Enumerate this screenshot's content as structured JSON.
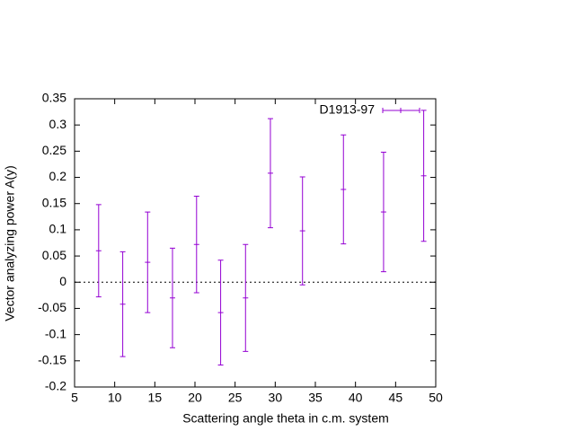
{
  "chart_data": {
    "type": "errorbar",
    "x_label": "Scattering angle theta in c.m. system",
    "y_label": "Vector analyzing power A(y)",
    "x": [
      8.0,
      11.0,
      14.1,
      17.2,
      20.2,
      23.2,
      26.3,
      29.4,
      33.4,
      38.5,
      43.5,
      48.5
    ],
    "series": [
      {
        "name": "D1913-97",
        "color": "#9400d3",
        "values": [
          0.06,
          -0.042,
          0.038,
          -0.03,
          0.072,
          -0.058,
          -0.03,
          0.208,
          0.098,
          0.177,
          0.134,
          0.203
        ],
        "errors": [
          0.088,
          0.1,
          0.096,
          0.095,
          0.092,
          0.1,
          0.102,
          0.104,
          0.103,
          0.104,
          0.114,
          0.125
        ]
      }
    ],
    "xlim": [
      5,
      50
    ],
    "xticks": [
      5,
      10,
      15,
      20,
      25,
      30,
      35,
      40,
      45,
      50
    ],
    "ylim": [
      -0.2,
      0.35
    ],
    "yticks": [
      -0.2,
      -0.15,
      -0.1,
      -0.05,
      0,
      0.05,
      0.1,
      0.15,
      0.2,
      0.25,
      0.3,
      0.35
    ],
    "zero_axis": true,
    "legend": "top-right"
  }
}
